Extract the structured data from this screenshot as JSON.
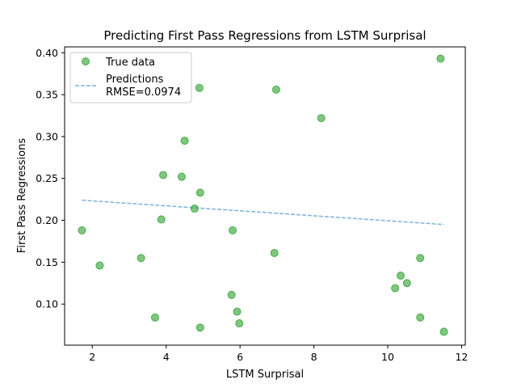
{
  "chart_data": {
    "type": "scatter",
    "title": "Predicting First Pass Regressions from LSTM Surprisal",
    "xlabel": "LSTM Surprisal",
    "ylabel": "First Pass Regressions",
    "xlim": [
      1.25,
      12.1
    ],
    "ylim": [
      0.051,
      0.407
    ],
    "xticks": [
      2,
      4,
      6,
      8,
      10,
      12
    ],
    "xtick_labels": [
      "2",
      "4",
      "6",
      "8",
      "10",
      "12"
    ],
    "yticks": [
      0.1,
      0.15,
      0.2,
      0.25,
      0.3,
      0.35,
      0.4
    ],
    "ytick_labels": [
      "0.10",
      "0.15",
      "0.20",
      "0.25",
      "0.30",
      "0.35",
      "0.40"
    ],
    "grid": false,
    "legend_position": "top-left",
    "colors": {
      "true_data": "#2ca02c",
      "predictions": "#7fb2d9"
    },
    "series": [
      {
        "name": "True data",
        "kind": "scatter",
        "points": [
          [
            1.72,
            0.188
          ],
          [
            2.2,
            0.146
          ],
          [
            3.32,
            0.155
          ],
          [
            3.7,
            0.084
          ],
          [
            3.87,
            0.201
          ],
          [
            3.92,
            0.254
          ],
          [
            4.42,
            0.252
          ],
          [
            4.5,
            0.295
          ],
          [
            4.77,
            0.214
          ],
          [
            4.9,
            0.358
          ],
          [
            4.92,
            0.072
          ],
          [
            4.92,
            0.233
          ],
          [
            5.77,
            0.111
          ],
          [
            5.8,
            0.188
          ],
          [
            5.92,
            0.091
          ],
          [
            5.98,
            0.077
          ],
          [
            6.93,
            0.161
          ],
          [
            6.98,
            0.356
          ],
          [
            8.2,
            0.322
          ],
          [
            10.2,
            0.119
          ],
          [
            10.35,
            0.134
          ],
          [
            10.52,
            0.125
          ],
          [
            10.88,
            0.155
          ],
          [
            10.88,
            0.084
          ],
          [
            11.43,
            0.393
          ],
          [
            11.52,
            0.067
          ]
        ]
      },
      {
        "name": "Predictions",
        "name_line2": "RMSE=0.0974",
        "kind": "line",
        "points": [
          [
            1.72,
            0.224
          ],
          [
            11.52,
            0.195
          ]
        ]
      }
    ]
  }
}
